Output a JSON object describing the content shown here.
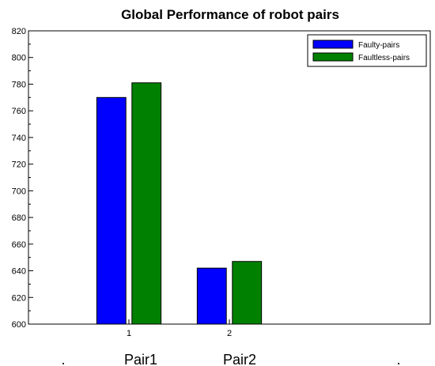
{
  "chart_data": {
    "type": "bar",
    "title": "Global Performance of robot pairs",
    "categories": [
      "1",
      "2"
    ],
    "category_names": [
      "Pair1",
      "Pair2"
    ],
    "dots": [
      ".",
      "."
    ],
    "series": [
      {
        "name": "Faulty-pairs",
        "color": "#0000ff",
        "values": [
          770,
          642
        ]
      },
      {
        "name": "Faultless-pairs",
        "color": "#008000",
        "values": [
          781,
          647
        ]
      }
    ],
    "ylim": [
      600,
      820
    ],
    "yticks": [
      600,
      620,
      640,
      660,
      680,
      700,
      720,
      740,
      760,
      780,
      800,
      820
    ],
    "xlim": [
      0.0,
      4.0
    ],
    "grid": false,
    "legend_position": "top-right"
  }
}
